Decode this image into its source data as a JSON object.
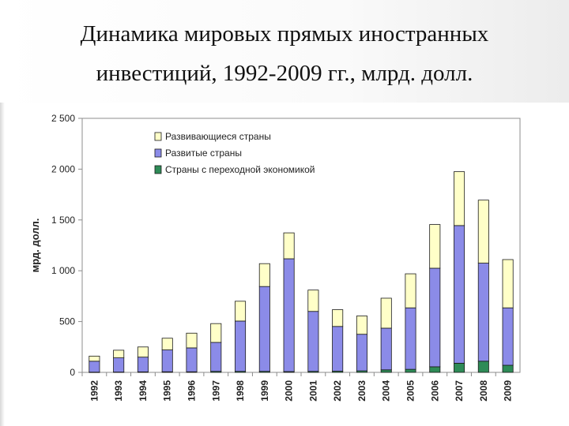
{
  "slide": {
    "title_line1": "Динамика мировых прямых иностранных",
    "title_line2": "инвестиций, 1992-2009 гг., млрд. долл."
  },
  "chart_data": {
    "type": "bar",
    "stacked": true,
    "ylabel": "мрд. долл.",
    "ylim": [
      0,
      2500
    ],
    "yticks": [
      0,
      500,
      1000,
      1500,
      2000,
      2500
    ],
    "ytick_labels": [
      "0",
      "500",
      "1 000",
      "1 500",
      "2 000",
      "2 500"
    ],
    "grid": false,
    "legend_position": "top-left",
    "categories": [
      "1992",
      "1993",
      "1994",
      "1995",
      "1996",
      "1997",
      "1998",
      "1999",
      "2000",
      "2001",
      "2002",
      "2003",
      "2004",
      "2005",
      "2006",
      "2007",
      "2008",
      "2009"
    ],
    "series": [
      {
        "name": "Страны с переходной экономикой",
        "color": "#2e8b57",
        "values": [
          2,
          3,
          5,
          6,
          6,
          10,
          10,
          10,
          8,
          10,
          12,
          15,
          25,
          30,
          55,
          90,
          110,
          70
        ]
      },
      {
        "name": "Развитые страны",
        "color": "#8b8be8",
        "values": [
          108,
          140,
          145,
          215,
          235,
          285,
          495,
          835,
          1110,
          590,
          440,
          360,
          410,
          605,
          970,
          1355,
          965,
          565
        ]
      },
      {
        "name": "Развивающиеся страны",
        "color": "#ffffc8",
        "values": [
          50,
          75,
          100,
          115,
          145,
          185,
          195,
          225,
          255,
          210,
          165,
          180,
          295,
          335,
          430,
          530,
          620,
          475
        ]
      }
    ],
    "legend_order": [
      "Развивающиеся страны",
      "Развитые страны",
      "Страны с переходной экономикой"
    ]
  }
}
